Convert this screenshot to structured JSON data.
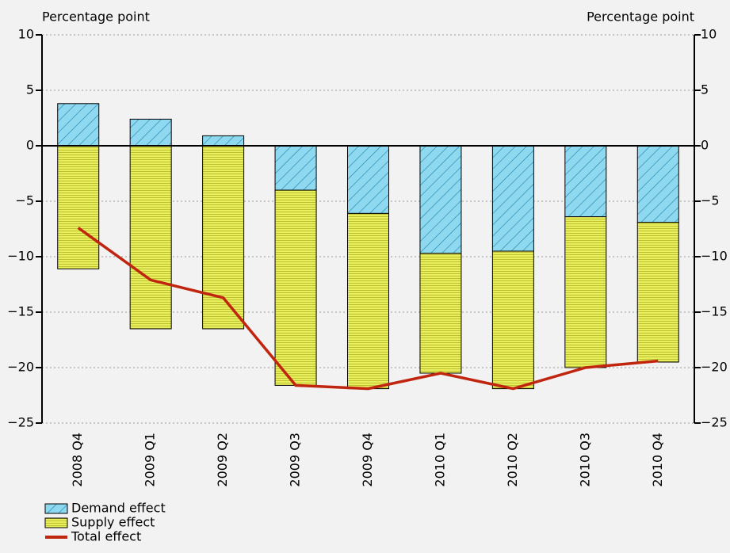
{
  "chart_data": {
    "type": "bar",
    "stacked": true,
    "y_label": "Percentage point",
    "y2_label": "Percentage point",
    "categories": [
      "2008 Q4",
      "2009 Q1",
      "2009 Q2",
      "2009 Q3",
      "2009 Q4",
      "2010 Q1",
      "2010 Q2",
      "2010 Q3",
      "2010 Q4"
    ],
    "series": [
      {
        "name": "Demand effect",
        "type": "bar",
        "color": "#8fd9f0",
        "values": [
          3.8,
          2.4,
          0.9,
          -4.0,
          -6.1,
          -9.7,
          -9.5,
          -6.4,
          -6.9
        ]
      },
      {
        "name": "Supply effect",
        "type": "bar",
        "color": "#e8ef5c",
        "values": [
          -11.1,
          -16.5,
          -16.5,
          -17.6,
          -15.8,
          -10.8,
          -12.4,
          -13.6,
          -12.6
        ]
      },
      {
        "name": "Total effect",
        "type": "line",
        "color": "#c0260f",
        "values": [
          -7.4,
          -12.1,
          -13.7,
          -21.6,
          -21.9,
          -20.5,
          -21.9,
          -20.0,
          -19.4
        ]
      }
    ],
    "ylim": [
      -25,
      10
    ],
    "yticks": [
      {
        "value": -25,
        "label": "−25"
      },
      {
        "value": -20,
        "label": "−20"
      },
      {
        "value": -15,
        "label": "−15"
      },
      {
        "value": -10,
        "label": "−10"
      },
      {
        "value": -5,
        "label": "−5"
      },
      0,
      5,
      10
    ],
    "y2lim": [
      -25,
      10
    ],
    "y2ticks": [
      {
        "value": -25,
        "label": "−25"
      },
      {
        "value": -20,
        "label": "−20"
      },
      {
        "value": -15,
        "label": "−15"
      },
      {
        "value": -10,
        "label": "−10"
      },
      {
        "value": -5,
        "label": "−5"
      },
      0,
      5,
      10
    ],
    "grid": true
  }
}
